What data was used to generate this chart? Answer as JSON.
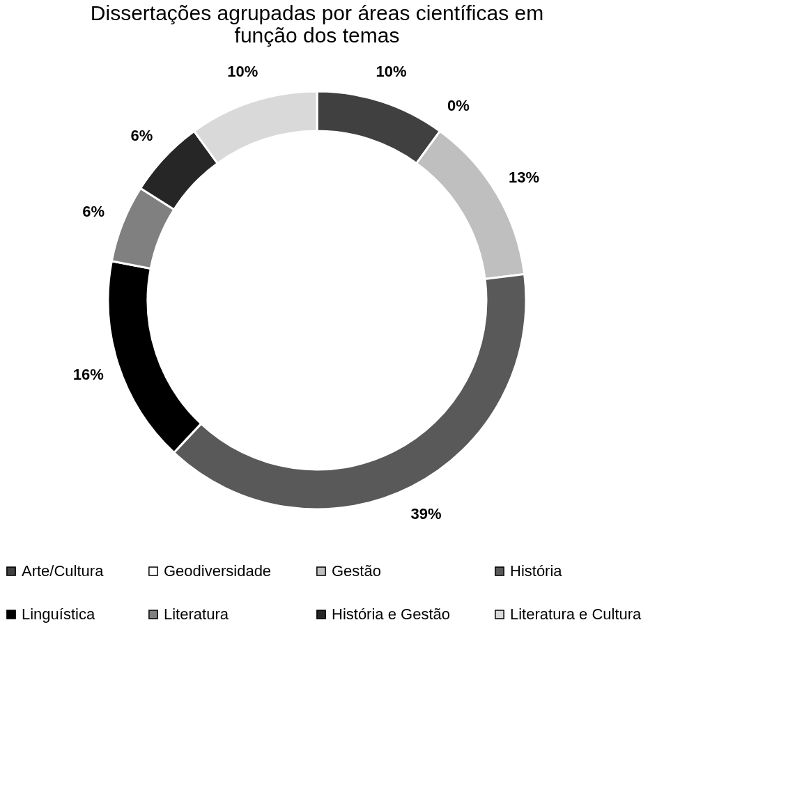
{
  "chart_data": {
    "type": "donut",
    "title": "Dissertações agrupadas por áreas científicas em função dos temas",
    "categories": [
      "Arte/Cultura",
      "Geodiversidade",
      "Gestão",
      "História",
      "Linguística",
      "Literatura",
      "História e Gestão",
      "Literatura e Cultura"
    ],
    "values": [
      10,
      0,
      13,
      39,
      16,
      6,
      6,
      10
    ],
    "value_labels": [
      "10%",
      "0%",
      "13%",
      "39%",
      "16%",
      "6%",
      "6%",
      "10%"
    ],
    "colors": [
      "#404040",
      "#ffffff",
      "#bfbfbf",
      "#595959",
      "#000000",
      "#808080",
      "#262626",
      "#d9d9d9"
    ],
    "legend": "bottom"
  }
}
